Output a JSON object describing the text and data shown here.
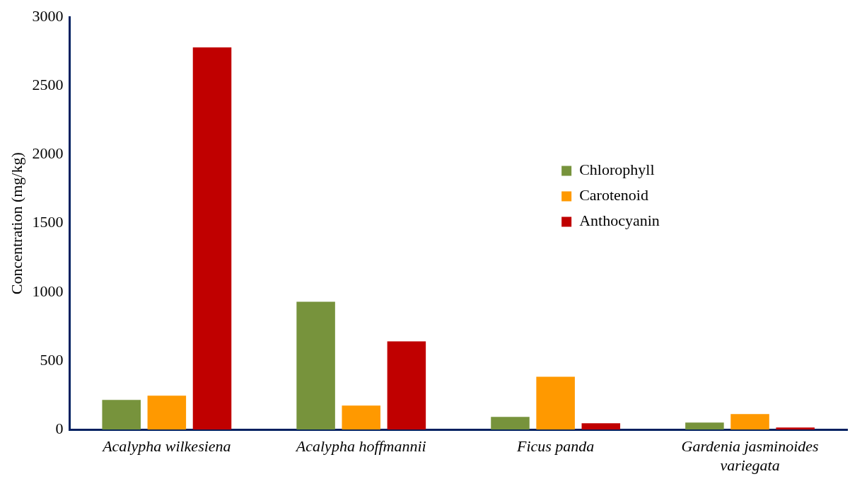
{
  "chart_data": {
    "type": "bar",
    "ylabel": "Concentration (mg/kg)",
    "categories": [
      "Acalypha wilkesiena",
      "Acalypha hoffmannii",
      "Ficus panda",
      "Gardenia jasminoides variegata"
    ],
    "series": [
      {
        "name": "Chlorophyll",
        "color": "#77933c",
        "values": [
          216,
          930,
          92,
          51
        ]
      },
      {
        "name": "Carotenoid",
        "color": "#ff9900",
        "values": [
          247,
          175,
          385,
          113
        ]
      },
      {
        "name": "Anthocyanin",
        "color": "#c00000",
        "values": [
          2780,
          642,
          46,
          15
        ]
      }
    ],
    "ylim": [
      0,
      3000
    ],
    "yticks": [
      0,
      500,
      1000,
      1500,
      2000,
      2500,
      3000
    ],
    "grid": false,
    "legend": "top right"
  }
}
